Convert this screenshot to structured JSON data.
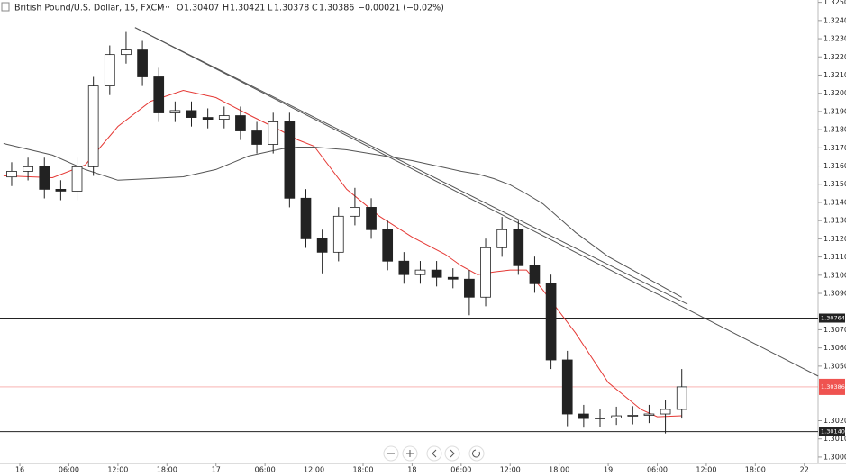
{
  "chart_data": {
    "type": "candlestick",
    "title": "British Pound/U.S. Dollar, 15, FXCM",
    "ohlc_labels": [
      "O",
      "H",
      "L",
      "C"
    ],
    "ohlc_values": [
      "1.30407",
      "1.30421",
      "1.30378",
      "1.30386"
    ],
    "change": "−0.00021 (−0.02%)",
    "x": [
      -1,
      1,
      3,
      5,
      7,
      9,
      11,
      13,
      15,
      17,
      19,
      21,
      23,
      25,
      27,
      29,
      31,
      33,
      35,
      37,
      39,
      41,
      43,
      45,
      47,
      49,
      51,
      53,
      55,
      57,
      59,
      61,
      63,
      65,
      67,
      69,
      71,
      73,
      75,
      77,
      79,
      81
    ],
    "open": [
      1.3154,
      1.31571,
      1.31596,
      1.31472,
      1.31462,
      1.31596,
      1.3204,
      1.32213,
      1.32238,
      1.3209,
      1.31892,
      1.31905,
      1.31867,
      1.31857,
      1.31877,
      1.31793,
      1.31719,
      1.31843,
      1.31423,
      1.312,
      1.31126,
      1.31324,
      1.31373,
      1.3125,
      1.31077,
      1.31003,
      1.31028,
      1.30988,
      1.30978,
      1.30879,
      1.31151,
      1.3125,
      1.31052,
      1.30953,
      1.30534,
      1.30237,
      1.30212,
      1.30215,
      1.30227,
      1.3023,
      1.30237,
      1.30262
    ],
    "high": [
      1.31621,
      1.31646,
      1.31646,
      1.31522,
      1.31646,
      1.3209,
      1.32263,
      1.32337,
      1.32288,
      1.3214,
      1.31955,
      1.31955,
      1.31917,
      1.31927,
      1.31927,
      1.31843,
      1.31893,
      1.31893,
      1.31473,
      1.3125,
      1.31374,
      1.3148,
      1.31423,
      1.313,
      1.31127,
      1.31078,
      1.31078,
      1.31038,
      1.31028,
      1.31201,
      1.3132,
      1.313,
      1.31102,
      1.31003,
      1.30584,
      1.30287,
      1.30265,
      1.30277,
      1.3028,
      1.30287,
      1.30312,
      1.30484
    ],
    "low": [
      1.3149,
      1.31521,
      1.31422,
      1.31412,
      1.31412,
      1.31546,
      1.3199,
      1.32163,
      1.3204,
      1.31842,
      1.31842,
      1.31817,
      1.31807,
      1.31807,
      1.31743,
      1.31669,
      1.31669,
      1.31373,
      1.3115,
      1.3101,
      1.31076,
      1.31274,
      1.312,
      1.31027,
      1.30953,
      1.30953,
      1.30938,
      1.30928,
      1.3078,
      1.30829,
      1.31101,
      1.31002,
      1.30903,
      1.30484,
      1.3017,
      1.30162,
      1.30165,
      1.30177,
      1.3018,
      1.30187,
      1.3013,
      1.30212
    ],
    "close": [
      1.31571,
      1.31596,
      1.31472,
      1.31462,
      1.31596,
      1.3204,
      1.32213,
      1.32238,
      1.3209,
      1.31892,
      1.31905,
      1.31867,
      1.31857,
      1.31877,
      1.31793,
      1.31719,
      1.31843,
      1.31423,
      1.312,
      1.31126,
      1.31324,
      1.31373,
      1.3125,
      1.31077,
      1.31003,
      1.31028,
      1.30988,
      1.30978,
      1.30879,
      1.31151,
      1.3125,
      1.31052,
      1.30953,
      1.30534,
      1.30237,
      1.30212,
      1.30215,
      1.30227,
      1.3023,
      1.30237,
      1.30262,
      1.30386
    ],
    "up_color": "#ffffff",
    "down_color": "#222222",
    "series": [
      {
        "color": "#e53935",
        "x": [
          -2,
          4,
          8,
          12,
          16,
          20,
          24,
          28,
          32,
          34,
          36,
          40,
          44,
          48,
          52,
          54,
          56,
          58,
          60,
          62,
          64,
          68,
          72,
          76,
          78,
          81
        ],
        "values": [
          1.31546,
          1.31536,
          1.31606,
          1.31818,
          1.31956,
          1.32016,
          1.31976,
          1.31882,
          1.31793,
          1.31744,
          1.31709,
          1.31472,
          1.31324,
          1.3121,
          1.31116,
          1.31052,
          1.31003,
          1.31018,
          1.31028,
          1.31028,
          1.30919,
          1.30682,
          1.3041,
          1.30262,
          1.30222,
          1.30227
        ]
      },
      {
        "color": "#555555",
        "x": [
          -2,
          4,
          8,
          12,
          16,
          20,
          24,
          28,
          32,
          34,
          36,
          40,
          44,
          48,
          52,
          54,
          56,
          58,
          60,
          62,
          64,
          68,
          72,
          76,
          78,
          81
        ],
        "values": [
          1.31724,
          1.3166,
          1.31581,
          1.31522,
          1.31531,
          1.31541,
          1.31581,
          1.31655,
          1.31694,
          1.31704,
          1.31704,
          1.31689,
          1.3166,
          1.3163,
          1.31591,
          1.31571,
          1.31556,
          1.31531,
          1.31497,
          1.31447,
          1.31393,
          1.31235,
          1.31102,
          1.31003,
          1.30953,
          1.30879
        ]
      }
    ],
    "trend_lines": [
      {
        "color": "#555555",
        "x": [
          14.1,
          81.7
        ],
        "values": [
          1.32361,
          1.3084
        ]
      },
      {
        "color": "#555555",
        "x": [
          14.1,
          97.7
        ],
        "values": [
          1.32361,
          1.30445
        ]
      }
    ],
    "hlines": [
      {
        "value": 1.30764,
        "label": "1.30764",
        "color": "#222222"
      },
      {
        "value": 1.3014,
        "label": "1.30140",
        "color": "#222222"
      }
    ],
    "price_line": {
      "value": 1.30386,
      "label": "1.30386",
      "color": "#ef5350"
    },
    "xlim": [
      -2.43,
      97.68
    ],
    "xticks": [
      {
        "value": 0,
        "label": "16"
      },
      {
        "value": 6,
        "label": "06:00"
      },
      {
        "value": 12,
        "label": "12:00"
      },
      {
        "value": 18,
        "label": "18:00"
      },
      {
        "value": 24,
        "label": "17"
      },
      {
        "value": 30,
        "label": "06:00"
      },
      {
        "value": 36,
        "label": "12:00"
      },
      {
        "value": 42,
        "label": "18:00"
      },
      {
        "value": 48,
        "label": "18"
      },
      {
        "value": 54,
        "label": "06:00"
      },
      {
        "value": 60,
        "label": "12:00"
      },
      {
        "value": 66,
        "label": "18:00"
      },
      {
        "value": 72,
        "label": "19"
      },
      {
        "value": 78,
        "label": "06:00"
      },
      {
        "value": 84,
        "label": "12:00"
      },
      {
        "value": 90,
        "label": "18:00"
      },
      {
        "value": 96,
        "label": "22"
      }
    ],
    "ylim": [
      1.29965,
      1.32513
    ],
    "yticks": [
      {
        "value": 1.325,
        "label": "1.32500"
      },
      {
        "value": 1.324,
        "label": "1.32400"
      },
      {
        "value": 1.323,
        "label": "1.32300"
      },
      {
        "value": 1.322,
        "label": "1.32200"
      },
      {
        "value": 1.321,
        "label": "1.32100"
      },
      {
        "value": 1.32,
        "label": "1.32000"
      },
      {
        "value": 1.319,
        "label": "1.31900"
      },
      {
        "value": 1.318,
        "label": "1.31800"
      },
      {
        "value": 1.317,
        "label": "1.31700"
      },
      {
        "value": 1.316,
        "label": "1.31600"
      },
      {
        "value": 1.315,
        "label": "1.31500"
      },
      {
        "value": 1.314,
        "label": "1.31400"
      },
      {
        "value": 1.313,
        "label": "1.31300"
      },
      {
        "value": 1.312,
        "label": "1.31200"
      },
      {
        "value": 1.311,
        "label": "1.31100"
      },
      {
        "value": 1.31,
        "label": "1.31000"
      },
      {
        "value": 1.309,
        "label": "1.30900"
      },
      {
        "value": 1.307,
        "label": "1.30700"
      },
      {
        "value": 1.306,
        "label": "1.30600"
      },
      {
        "value": 1.305,
        "label": "1.30500"
      },
      {
        "value": 1.302,
        "label": "1.30200"
      },
      {
        "value": 1.301,
        "label": "1.30100"
      },
      {
        "value": 1.3,
        "label": "1.30000"
      }
    ]
  }
}
